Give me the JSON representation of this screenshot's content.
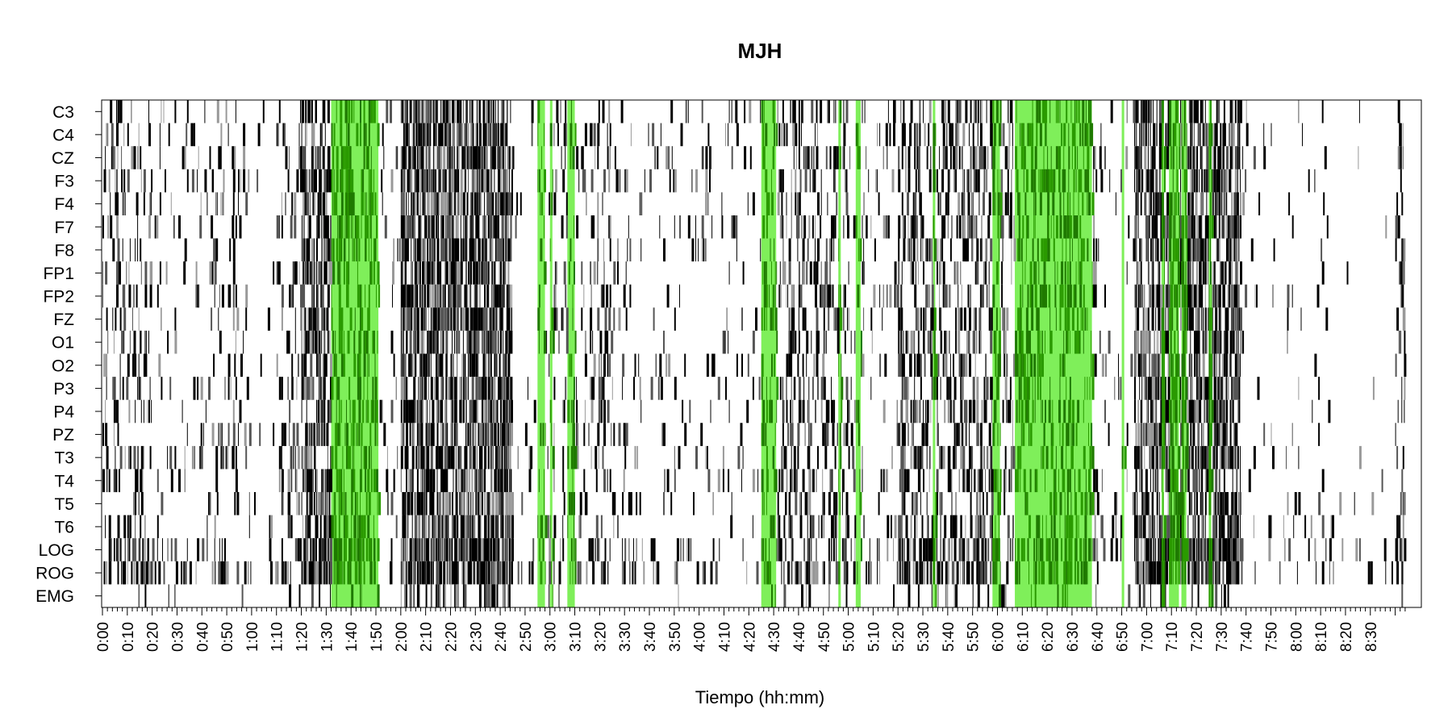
{
  "chart_data": {
    "type": "heatmap",
    "title": "MJH",
    "xlabel": "Tiempo (hh:mm)",
    "ylabel": "",
    "channels": [
      "C3",
      "C4",
      "CZ",
      "F3",
      "F4",
      "F7",
      "F8",
      "FP1",
      "FP2",
      "FZ",
      "O1",
      "O2",
      "P3",
      "P4",
      "PZ",
      "T3",
      "T4",
      "T5",
      "T6",
      "LOG",
      "ROG",
      "EMG"
    ],
    "x_ticks": [
      "0:00",
      "0:10",
      "0:20",
      "0:30",
      "0:40",
      "0:50",
      "1:00",
      "1:10",
      "1:20",
      "1:30",
      "1:40",
      "1:50",
      "2:00",
      "2:10",
      "2:20",
      "2:30",
      "2:40",
      "2:50",
      "3:00",
      "3:10",
      "3:20",
      "3:30",
      "3:40",
      "3:50",
      "4:00",
      "4:10",
      "4:20",
      "4:30",
      "4:40",
      "4:50",
      "5:00",
      "5:10",
      "5:20",
      "5:30",
      "5:40",
      "5:50",
      "6:00",
      "6:10",
      "6:20",
      "6:30",
      "6:40",
      "6:50",
      "7:00",
      "7:10",
      "7:20",
      "7:30",
      "7:40",
      "7:50",
      "8:00",
      "8:10",
      "8:20",
      "8:30"
    ],
    "x_range_minutes": [
      0,
      525
    ],
    "grid": false,
    "colors": {
      "marks": "#000000",
      "highlight": "#7fef5a",
      "highlight_dark": "#2a9a00",
      "background": "#ffffff"
    },
    "highlight_intervals_minutes": [
      [
        92,
        111
      ],
      [
        175,
        178
      ],
      [
        180,
        181
      ],
      [
        187,
        190
      ],
      [
        265,
        271
      ],
      [
        296,
        297
      ],
      [
        303,
        305
      ],
      [
        334,
        335
      ],
      [
        358,
        361
      ],
      [
        367,
        398
      ],
      [
        410,
        411
      ],
      [
        426,
        427
      ],
      [
        429,
        433
      ],
      [
        434,
        436
      ],
      [
        445,
        446
      ]
    ],
    "activity_density_by_period": [
      {
        "start": 0,
        "end": 20,
        "density": 0.22
      },
      {
        "start": 20,
        "end": 38,
        "density": 0.08
      },
      {
        "start": 38,
        "end": 58,
        "density": 0.14
      },
      {
        "start": 58,
        "end": 70,
        "density": 0.03
      },
      {
        "start": 70,
        "end": 80,
        "density": 0.18
      },
      {
        "start": 80,
        "end": 92,
        "density": 0.55
      },
      {
        "start": 92,
        "end": 111,
        "density": 0.42
      },
      {
        "start": 111,
        "end": 120,
        "density": 0.06
      },
      {
        "start": 120,
        "end": 165,
        "density": 0.68
      },
      {
        "start": 165,
        "end": 175,
        "density": 0.04
      },
      {
        "start": 175,
        "end": 205,
        "density": 0.2
      },
      {
        "start": 205,
        "end": 265,
        "density": 0.07
      },
      {
        "start": 265,
        "end": 300,
        "density": 0.28
      },
      {
        "start": 300,
        "end": 320,
        "density": 0.12
      },
      {
        "start": 320,
        "end": 358,
        "density": 0.38
      },
      {
        "start": 358,
        "end": 400,
        "density": 0.3
      },
      {
        "start": 400,
        "end": 415,
        "density": 0.05
      },
      {
        "start": 415,
        "end": 458,
        "density": 0.62
      },
      {
        "start": 458,
        "end": 495,
        "density": 0.04
      },
      {
        "start": 495,
        "end": 520,
        "density": 0.01
      },
      {
        "start": 520,
        "end": 524,
        "density": 0.3
      }
    ]
  }
}
